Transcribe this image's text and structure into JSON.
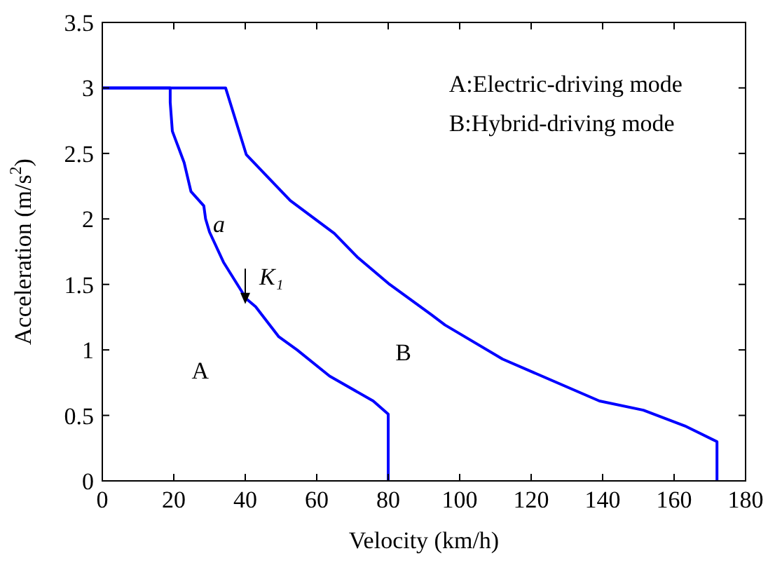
{
  "chart_data": {
    "type": "line",
    "xlabel": "Velocity (km/h)",
    "ylabel": "Acceleration (m/s$^{2}$)",
    "xlim": [
      0,
      180
    ],
    "xticks": [
      0,
      20,
      40,
      60,
      80,
      100,
      120,
      140,
      160,
      180
    ],
    "ylim": [
      0,
      3.5
    ],
    "yticks": [
      0,
      0.5,
      1,
      1.5,
      2,
      2.5,
      3,
      3.5
    ],
    "grid": false,
    "marker": "none",
    "line_style": "solid",
    "series": [
      {
        "color": "#0000ff",
        "x": [
          0,
          19,
          19,
          19.6,
          22.9,
          24.8,
          28.4,
          28.9,
          30,
          33.9,
          40.3,
          42.9,
          49.4,
          54.5,
          63.6,
          75.8,
          80,
          80
        ],
        "values": [
          3,
          3,
          2.89,
          2.67,
          2.43,
          2.21,
          2.1,
          2.0,
          1.9,
          1.67,
          1.39,
          1.33,
          1.1,
          1.0,
          0.8,
          0.61,
          0.51,
          0
        ]
      },
      {
        "color": "#0000ff",
        "x": [
          0,
          34.5,
          40.3,
          52.6,
          64.9,
          71.3,
          80.4,
          92,
          95.9,
          112,
          139.1,
          151.4,
          163,
          172,
          172
        ],
        "values": [
          3,
          3,
          2.49,
          2.14,
          1.89,
          1.71,
          1.5,
          1.27,
          1.19,
          0.93,
          0.61,
          0.54,
          0.42,
          0.3,
          0
        ]
      }
    ],
    "annotations": [
      {
        "text": "a",
        "x": 31,
        "y": 1.9
      },
      {
        "text": "K₁",
        "x": 40,
        "y": 1.35
      },
      "A",
      "B",
      "A:Electric-driving mode",
      "B:Hybrid-driving mode"
    ]
  }
}
